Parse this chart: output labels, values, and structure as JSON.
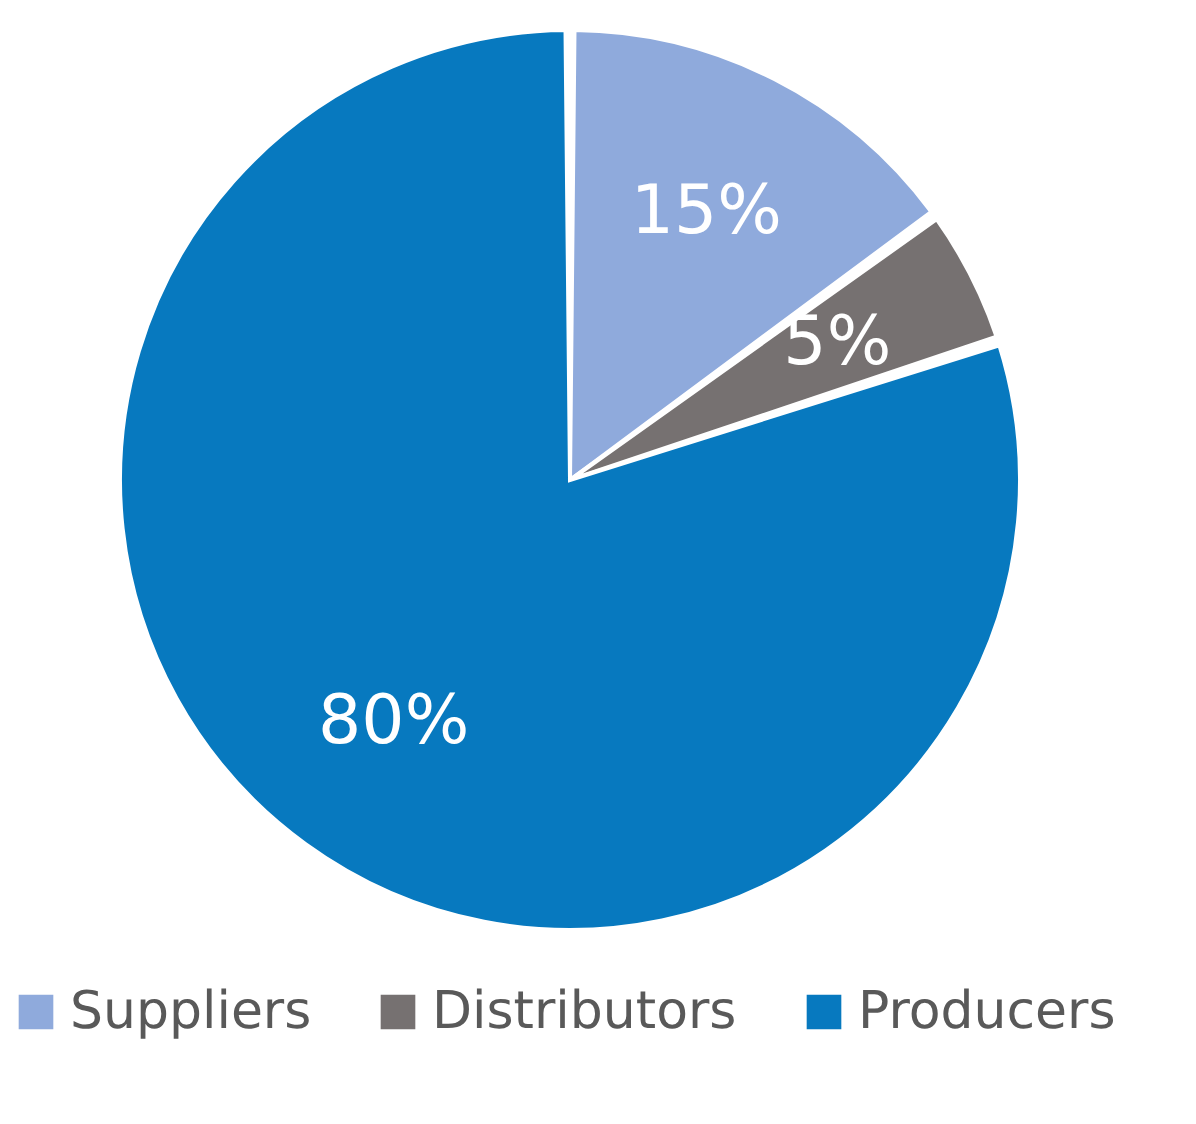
{
  "chart_data": {
    "type": "pie",
    "categories": [
      "Suppliers",
      "Distributors",
      "Producers"
    ],
    "values": [
      15,
      5,
      80
    ],
    "value_labels": [
      "15%",
      "5%",
      "80%"
    ],
    "colors": [
      "#8faadc",
      "#767171",
      "#0779bf"
    ],
    "legend": "bottom"
  }
}
